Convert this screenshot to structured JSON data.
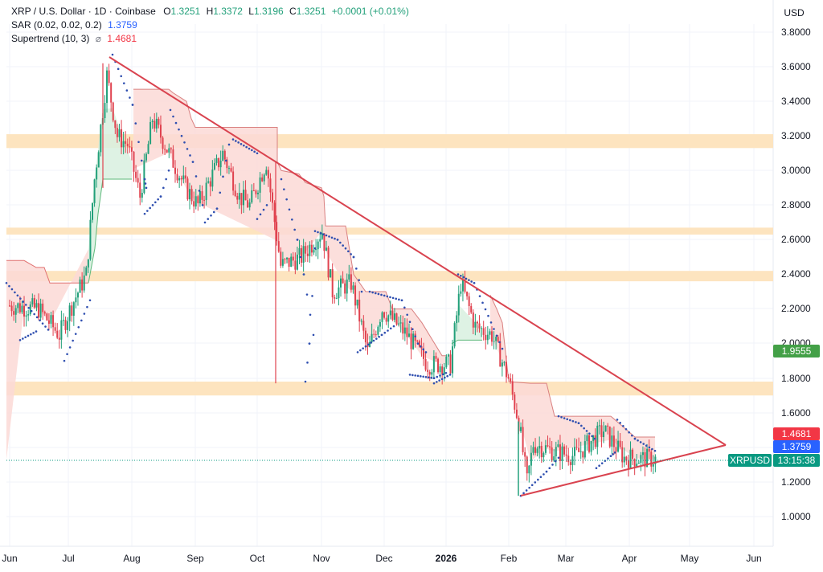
{
  "header": {
    "symbol": "XRP / U.S. Dollar · 1D · Coinbase",
    "o_label": "O",
    "o_value": "1.3251",
    "h_label": "H",
    "h_value": "1.3372",
    "l_label": "L",
    "l_value": "1.3196",
    "c_label": "C",
    "c_value": "1.3251",
    "change": "+0.0001 (+0.01%)",
    "sar_label": "SAR (0.02, 0.02, 0.2)",
    "sar_value": "1.3759",
    "st_label": "Supertrend (10, 3)",
    "st_icon": "⌀",
    "st_value": "1.4681"
  },
  "axis": {
    "currency": "USD",
    "y_ticks": [
      "3.8000",
      "3.6000",
      "3.4000",
      "3.2000",
      "3.0000",
      "2.8000",
      "2.6000",
      "2.4000",
      "2.2000",
      "2.0000",
      "1.8000",
      "1.6000",
      "1.2000",
      "1.0000"
    ],
    "x_ticks": [
      "Jun",
      "Jul",
      "Aug",
      "Sep",
      "Oct",
      "Nov",
      "Dec",
      "2026",
      "Feb",
      "Mar",
      "Apr",
      "May",
      "Jun"
    ]
  },
  "tags": {
    "supertrend_green": "1.9555",
    "supertrend_red": "1.4681",
    "sar": "1.3759",
    "symbol": "XRPUSD",
    "countdown": "13:15:38"
  },
  "colors": {
    "up": "#22a07a",
    "down": "#e0424f",
    "sar": "#2f4fb0",
    "trendline": "#d9434f",
    "band": "#fde4bf",
    "st_red_fill": "#fbd9d6",
    "st_green_fill": "#d8f0df",
    "tag_green": "#43a047",
    "tag_red": "#f23645",
    "tag_blue": "#2962ff",
    "tag_symbol": "#089981"
  },
  "chart_data": {
    "type": "candlestick",
    "title": "XRP / U.S. Dollar · 1D · Coinbase",
    "ylabel": "USD",
    "ylim": [
      0.9,
      3.9
    ],
    "x_range": [
      "Jun 2025",
      "Jun 2026"
    ],
    "grid": true,
    "last": {
      "open": 1.3251,
      "high": 1.3372,
      "low": 1.3196,
      "close": 1.3251,
      "change": 0.0001,
      "change_pct": 0.01
    },
    "indicators": {
      "SAR": {
        "params": [
          0.02,
          0.02,
          0.2
        ],
        "value": 1.3759
      },
      "Supertrend": {
        "params": [
          10,
          3
        ],
        "value": 1.4681,
        "prior_support": 1.9555
      }
    },
    "horizontal_zones": [
      {
        "from": 3.13,
        "to": 3.21
      },
      {
        "from": 2.63,
        "to": 2.67
      },
      {
        "from": 2.36,
        "to": 2.42
      },
      {
        "from": 1.7,
        "to": 1.78
      }
    ],
    "trendlines": [
      {
        "name": "descending resistance",
        "from": {
          "date": "2025-07-18",
          "price": 3.65
        },
        "to": {
          "date": "2026-05-20",
          "price": 1.4
        }
      },
      {
        "name": "ascending support",
        "from": {
          "date": "2026-02-06",
          "price": 1.12
        },
        "to": {
          "date": "2026-05-20",
          "price": 1.4
        }
      }
    ],
    "path_points": [
      {
        "date": "2025-06-01",
        "close": 2.22
      },
      {
        "date": "2025-06-15",
        "close": 2.2
      },
      {
        "date": "2025-06-25",
        "close": 2.05
      },
      {
        "date": "2025-07-01",
        "close": 2.22
      },
      {
        "date": "2025-07-08",
        "close": 2.4
      },
      {
        "date": "2025-07-12",
        "close": 2.95
      },
      {
        "date": "2025-07-18",
        "close": 3.55
      },
      {
        "date": "2025-07-23",
        "close": 3.2
      },
      {
        "date": "2025-07-28",
        "close": 3.15
      },
      {
        "date": "2025-08-03",
        "close": 2.85
      },
      {
        "date": "2025-08-09",
        "close": 3.3
      },
      {
        "date": "2025-08-17",
        "close": 3.1
      },
      {
        "date": "2025-08-25",
        "close": 2.9
      },
      {
        "date": "2025-08-31",
        "close": 2.8
      },
      {
        "date": "2025-09-12",
        "close": 3.1
      },
      {
        "date": "2025-09-20",
        "close": 2.85
      },
      {
        "date": "2025-09-25",
        "close": 2.8
      },
      {
        "date": "2025-10-03",
        "close": 3.05
      },
      {
        "date": "2025-10-10",
        "close": 2.45
      },
      {
        "date": "2025-10-20",
        "close": 2.5
      },
      {
        "date": "2025-10-30",
        "close": 2.65
      },
      {
        "date": "2025-11-04",
        "close": 2.3
      },
      {
        "date": "2025-11-13",
        "close": 2.35
      },
      {
        "date": "2025-11-21",
        "close": 1.95
      },
      {
        "date": "2025-11-28",
        "close": 2.2
      },
      {
        "date": "2025-12-10",
        "close": 2.05
      },
      {
        "date": "2025-12-20",
        "close": 1.88
      },
      {
        "date": "2025-12-31",
        "close": 1.88
      },
      {
        "date": "2026-01-05",
        "close": 2.35
      },
      {
        "date": "2026-01-12",
        "close": 2.1
      },
      {
        "date": "2026-01-20",
        "close": 2.05
      },
      {
        "date": "2026-01-28",
        "close": 1.8
      },
      {
        "date": "2026-02-02",
        "close": 1.55
      },
      {
        "date": "2026-02-06",
        "close": 1.2
      },
      {
        "date": "2026-02-09",
        "close": 1.42
      },
      {
        "date": "2026-02-18",
        "close": 1.38
      },
      {
        "date": "2026-03-01",
        "close": 1.35
      },
      {
        "date": "2026-03-15",
        "close": 1.5
      },
      {
        "date": "2026-03-25",
        "close": 1.34
      },
      {
        "date": "2026-04-10",
        "close": 1.33
      }
    ]
  }
}
